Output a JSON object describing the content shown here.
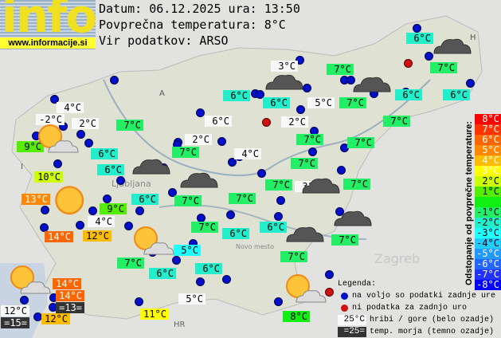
{
  "header": {
    "logo_text": "info",
    "logo_url": "www.informacije.si",
    "date_line": "Datum: 06.12.2025 ura: 13:50",
    "avg_line": "Povprečna temperatura: 8°C",
    "source_line": "Vir podatkov: ARSO"
  },
  "map_labels": [
    "A",
    "I",
    "H",
    "HR",
    "Ljubljana",
    "Zagreb",
    "Novo mesto"
  ],
  "stations": [
    {
      "temp": "6°C",
      "kind": "dev",
      "dev": -2
    },
    {
      "temp": "3°C",
      "kind": "mountain"
    },
    {
      "temp": "7°C",
      "kind": "dev",
      "dev": -1
    },
    {
      "temp": "7°C",
      "kind": "dev",
      "dev": -1
    },
    {
      "temp": "6°C",
      "kind": "dev",
      "dev": -2
    },
    {
      "temp": "6°C",
      "kind": "dev",
      "dev": -2
    },
    {
      "temp": "5°C",
      "kind": "mountain"
    },
    {
      "temp": "7°C",
      "kind": "dev",
      "dev": -1
    },
    {
      "temp": "6°C",
      "kind": "dev",
      "dev": -2
    },
    {
      "temp": "6°C",
      "kind": "dev",
      "dev": -2
    },
    {
      "temp": "4°C",
      "kind": "mountain"
    },
    {
      "temp": "-2°C",
      "kind": "mountain"
    },
    {
      "temp": "2°C",
      "kind": "mountain"
    },
    {
      "temp": "7°C",
      "kind": "dev",
      "dev": -1
    },
    {
      "temp": "6°C",
      "kind": "mountain"
    },
    {
      "temp": "2°C",
      "kind": "mountain"
    },
    {
      "temp": "7°C",
      "kind": "dev",
      "dev": -1
    },
    {
      "temp": "9°C",
      "kind": "dev",
      "dev": 1
    },
    {
      "temp": "7°C",
      "kind": "dev",
      "dev": -1
    },
    {
      "temp": "7°C",
      "kind": "dev",
      "dev": -1
    },
    {
      "temp": "2°C",
      "kind": "mountain"
    },
    {
      "temp": "6°C",
      "kind": "dev",
      "dev": -2
    },
    {
      "temp": "7°C",
      "kind": "dev",
      "dev": -1
    },
    {
      "temp": "4°C",
      "kind": "mountain"
    },
    {
      "temp": "7°C",
      "kind": "dev",
      "dev": -1
    },
    {
      "temp": "6°C",
      "kind": "dev",
      "dev": -2
    },
    {
      "temp": "10°C",
      "kind": "dev",
      "dev": 2
    },
    {
      "temp": "7°C",
      "kind": "dev",
      "dev": -1
    },
    {
      "temp": "3°C",
      "kind": "mountain"
    },
    {
      "temp": "7°C",
      "kind": "dev",
      "dev": -1
    },
    {
      "temp": "6°C",
      "kind": "dev",
      "dev": -2
    },
    {
      "temp": "7°C",
      "kind": "dev",
      "dev": -1
    },
    {
      "temp": "7°C",
      "kind": "dev",
      "dev": -1
    },
    {
      "temp": "13°C",
      "kind": "dev",
      "dev": 5
    },
    {
      "temp": "9°C",
      "kind": "dev",
      "dev": 1
    },
    {
      "temp": "4°C",
      "kind": "mountain"
    },
    {
      "temp": "7°C",
      "kind": "dev",
      "dev": -1
    },
    {
      "temp": "6°C",
      "kind": "dev",
      "dev": -2
    },
    {
      "temp": "6°C",
      "kind": "dev",
      "dev": -2
    },
    {
      "temp": "7°C",
      "kind": "dev",
      "dev": -1
    },
    {
      "temp": "14°C",
      "kind": "dev",
      "dev": 6
    },
    {
      "temp": "12°C",
      "kind": "dev",
      "dev": 4
    },
    {
      "temp": "5°C",
      "kind": "dev",
      "dev": -3
    },
    {
      "temp": "7°C",
      "kind": "dev",
      "dev": -1
    },
    {
      "temp": "6°C",
      "kind": "dev",
      "dev": -2
    },
    {
      "temp": "6°C",
      "kind": "dev",
      "dev": -2
    },
    {
      "temp": "7°C",
      "kind": "dev",
      "dev": -1
    },
    {
      "temp": "14°C",
      "kind": "dev",
      "dev": 6
    },
    {
      "temp": "14°C",
      "kind": "dev",
      "dev": 6
    },
    {
      "temp": "=13=",
      "kind": "sea"
    },
    {
      "temp": "12°C",
      "kind": "mountain"
    },
    {
      "temp": "=15=",
      "kind": "sea"
    },
    {
      "temp": "12°C",
      "kind": "dev",
      "dev": 4
    },
    {
      "temp": "11°C",
      "kind": "dev",
      "dev": 3
    },
    {
      "temp": "5°C",
      "kind": "mountain"
    },
    {
      "temp": "8°C",
      "kind": "dev",
      "dev": 0
    }
  ],
  "station_dots": [
    "ok",
    "ok",
    "ok",
    "ok",
    "ok",
    "ok",
    "ok",
    "ok",
    "ok",
    "ok",
    "ok",
    "ok",
    "ok",
    "ok",
    "ok",
    "ok",
    "ok",
    "ok",
    "ok",
    "ok",
    "ok",
    "ok",
    "ok",
    "ok",
    "ok",
    "ok",
    "ok",
    "ok",
    "ok",
    "ok",
    "ok",
    "ok",
    "ok",
    "ok",
    "ok",
    "ok",
    "ok",
    "ok",
    "ok",
    "ok",
    "ok",
    "ok",
    "ok",
    "ok",
    "ok",
    "ok",
    "ok",
    "ok",
    "ok",
    "ok",
    "ok",
    "ok",
    "ok",
    "ok",
    "ok",
    "ok",
    "ok",
    "ok",
    "missing",
    "missing",
    "missing"
  ],
  "weather_icons": [
    "sun-cloud",
    "sun",
    "sun-cloud",
    "sun-cloud",
    "sun-cloud",
    "dark-cloud",
    "dark-cloud",
    "dark-cloud",
    "dark-cloud",
    "dark-cloud",
    "dark-cloud",
    "dark-cloud",
    "dark-cloud"
  ],
  "scale": {
    "title": "Odstopanje od povprečne temperature:",
    "steps": [
      {
        "label": "8°C",
        "color": "#ff0000"
      },
      {
        "label": "7°C",
        "color": "#ff3300"
      },
      {
        "label": "6°C",
        "color": "#ff6600"
      },
      {
        "label": "5°C",
        "color": "#ff8800"
      },
      {
        "label": "4°C",
        "color": "#ffbb00"
      },
      {
        "label": "3°C",
        "color": "#ffff00"
      },
      {
        "label": "2°C",
        "color": "#ccff00"
      },
      {
        "label": "1°C",
        "color": "#55ee00"
      },
      {
        "label": "",
        "color": "#11ee11"
      },
      {
        "label": "-1°C",
        "color": "#22ee66"
      },
      {
        "label": "-2°C",
        "color": "#22eecc"
      },
      {
        "label": "-3°C",
        "color": "#22ffff"
      },
      {
        "label": "-4°C",
        "color": "#22ccff"
      },
      {
        "label": "-5°C",
        "color": "#2299ff"
      },
      {
        "label": "-6°C",
        "color": "#2266ff"
      },
      {
        "label": "-7°C",
        "color": "#2233ff"
      },
      {
        "label": "-8°C",
        "color": "#0000ff"
      }
    ]
  },
  "legend": {
    "title": "Legenda:",
    "ok_text": "na voljo so podatki zadnje ure",
    "missing_text": "ni podatka za zadnjo uro",
    "mountain_sample": "25°C",
    "mountain_text": "hribi / gore (belo ozadje)",
    "sea_sample": "=25=",
    "sea_text": "temp. morja (temno ozadje)"
  },
  "colors": {
    "dot_ok": "#0010c8",
    "dot_missing": "#d01010",
    "mountain_bg": "#f8f8f8",
    "sea_bg": "#333333"
  }
}
